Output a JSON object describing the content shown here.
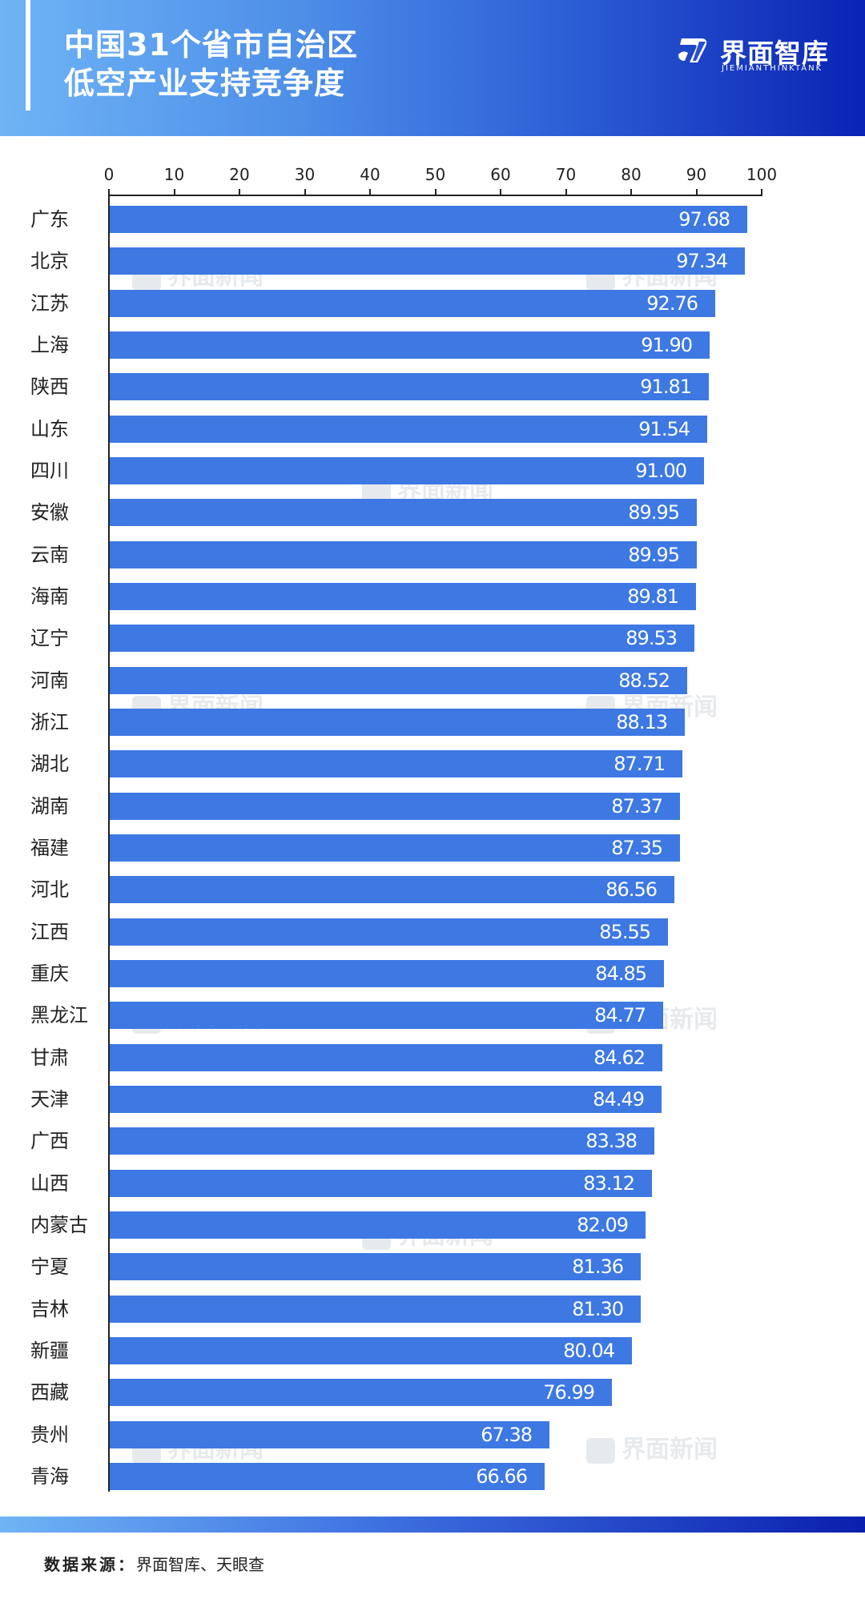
{
  "header": {
    "title_line1": "中国31个省市自治区",
    "title_line2": "低空产业支持竞争度",
    "logo_cn": "界面智库",
    "logo_en": "JIEMIANTHINKTANK"
  },
  "watermark": "界面新闻",
  "footer": {
    "source_label": "数据来源：",
    "source_value": "界面智库、天眼查"
  },
  "colors": {
    "bar": "#3d78e3",
    "header_start": "#6fb4f5",
    "header_end": "#0a23b4"
  },
  "chart_data": {
    "type": "bar",
    "orientation": "horizontal",
    "title": "中国31个省市自治区低空产业支持竞争度",
    "xlabel": "",
    "ylabel": "",
    "xlim": [
      0,
      100
    ],
    "xticks": [
      0,
      10,
      20,
      30,
      40,
      50,
      60,
      70,
      80,
      90,
      100
    ],
    "axis_position": "top",
    "grid": false,
    "legend": null,
    "categories": [
      "广东",
      "北京",
      "江苏",
      "上海",
      "陕西",
      "山东",
      "四川",
      "安徽",
      "云南",
      "海南",
      "辽宁",
      "河南",
      "浙江",
      "湖北",
      "湖南",
      "福建",
      "河北",
      "江西",
      "重庆",
      "黑龙江",
      "甘肃",
      "天津",
      "广西",
      "山西",
      "内蒙古",
      "宁夏",
      "吉林",
      "新疆",
      "西藏",
      "贵州",
      "青海"
    ],
    "values": [
      97.68,
      97.34,
      92.76,
      91.9,
      91.81,
      91.54,
      91.0,
      89.95,
      89.95,
      89.81,
      89.53,
      88.52,
      88.13,
      87.71,
      87.37,
      87.35,
      86.56,
      85.55,
      84.85,
      84.77,
      84.62,
      84.49,
      83.38,
      83.12,
      82.09,
      81.36,
      81.3,
      80.04,
      76.99,
      67.38,
      66.66
    ],
    "value_labels": [
      "97.68",
      "97.34",
      "92.76",
      "91.90",
      "91.81",
      "91.54",
      "91.00",
      "89.95",
      "89.95",
      "89.81",
      "89.53",
      "88.52",
      "88.13",
      "87.71",
      "87.37",
      "87.35",
      "86.56",
      "85.55",
      "84.85",
      "84.77",
      "84.62",
      "84.49",
      "83.38",
      "83.12",
      "82.09",
      "81.36",
      "81.30",
      "80.04",
      "76.99",
      "67.38",
      "66.66"
    ],
    "source": "界面智库、天眼查"
  }
}
